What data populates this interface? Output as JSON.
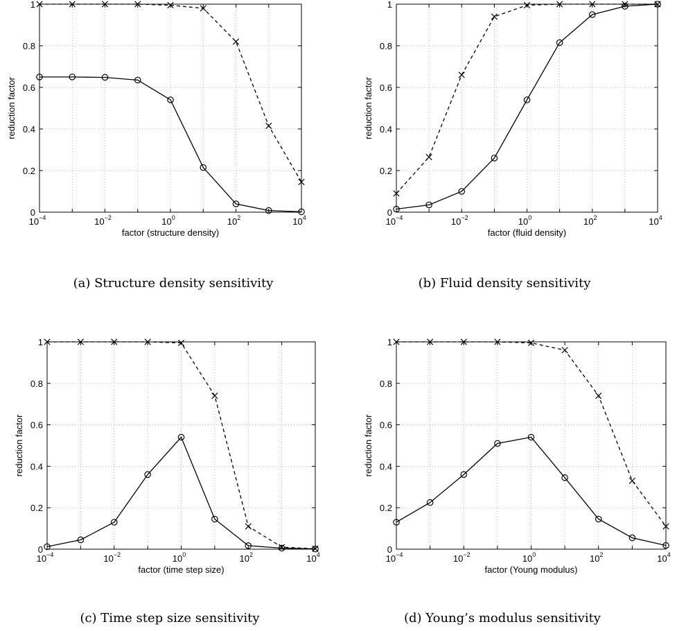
{
  "chart_data": [
    {
      "type": "line",
      "caption": "(a) Structure density sensitivity",
      "xlabel": "factor (structure density)",
      "ylabel": "reduction factor",
      "xscale": "log",
      "xlim": [
        0.0001,
        10000
      ],
      "ylim": [
        0,
        1
      ],
      "xticks": [
        0.0001,
        0.01,
        1,
        100,
        10000
      ],
      "xtick_labels": [
        {
          "base": "10",
          "exp": "−4"
        },
        {
          "base": "10",
          "exp": "−2"
        },
        {
          "base": "10",
          "exp": "0"
        },
        {
          "base": "10",
          "exp": "2"
        },
        {
          "base": "10",
          "exp": "4"
        }
      ],
      "yticks": [
        0,
        0.2,
        0.4,
        0.6,
        0.8,
        1
      ],
      "ytick_labels": [
        "0",
        "0.2",
        "0.4",
        "0.6",
        "0.8",
        "1"
      ],
      "grid": true,
      "x": [
        0.0001,
        0.001,
        0.01,
        0.1,
        1,
        10,
        100,
        1000,
        10000
      ],
      "series": [
        {
          "style": "solid",
          "marker": "circle",
          "values": [
            0.65,
            0.65,
            0.648,
            0.635,
            0.54,
            0.215,
            0.04,
            0.008,
            0.002
          ]
        },
        {
          "style": "dashed",
          "marker": "cross",
          "values": [
            1.0,
            1.0,
            1.0,
            1.0,
            0.995,
            0.98,
            0.82,
            0.415,
            0.145
          ]
        }
      ]
    },
    {
      "type": "line",
      "caption": "(b) Fluid density sensitivity",
      "xlabel": "factor (fluid density)",
      "ylabel": "reduction factor",
      "xscale": "log",
      "xlim": [
        0.0001,
        10000
      ],
      "ylim": [
        0,
        1
      ],
      "xticks": [
        0.0001,
        0.01,
        1,
        100,
        10000
      ],
      "xtick_labels": [
        {
          "base": "10",
          "exp": "−4"
        },
        {
          "base": "10",
          "exp": "−2"
        },
        {
          "base": "10",
          "exp": "0"
        },
        {
          "base": "10",
          "exp": "2"
        },
        {
          "base": "10",
          "exp": "4"
        }
      ],
      "yticks": [
        0,
        0.2,
        0.4,
        0.6,
        0.8,
        1
      ],
      "ytick_labels": [
        "0",
        "0.2",
        "0.4",
        "0.6",
        "0.8",
        "1"
      ],
      "grid": true,
      "x": [
        0.0001,
        0.001,
        0.01,
        0.1,
        1,
        10,
        100,
        1000,
        10000
      ],
      "series": [
        {
          "style": "solid",
          "marker": "circle",
          "values": [
            0.015,
            0.035,
            0.1,
            0.26,
            0.54,
            0.815,
            0.95,
            0.99,
            1.0
          ]
        },
        {
          "style": "dashed",
          "marker": "cross",
          "values": [
            0.09,
            0.265,
            0.66,
            0.94,
            0.995,
            1.0,
            1.0,
            1.0,
            1.0
          ]
        }
      ]
    },
    {
      "type": "line",
      "caption": "(c) Time step size sensitivity",
      "xlabel": "factor (time step size)",
      "ylabel": "reduction factor",
      "xscale": "log",
      "xlim": [
        0.0001,
        10000
      ],
      "ylim": [
        0,
        1
      ],
      "xticks": [
        0.0001,
        0.01,
        1,
        100,
        10000
      ],
      "xtick_labels": [
        {
          "base": "10",
          "exp": "−4"
        },
        {
          "base": "10",
          "exp": "−2"
        },
        {
          "base": "10",
          "exp": "0"
        },
        {
          "base": "10",
          "exp": "2"
        },
        {
          "base": "10",
          "exp": "4"
        }
      ],
      "yticks": [
        0,
        0.2,
        0.4,
        0.6,
        0.8,
        1
      ],
      "ytick_labels": [
        "0",
        "0.2",
        "0.4",
        "0.6",
        "0.8",
        "1"
      ],
      "grid": true,
      "x": [
        0.0001,
        0.001,
        0.01,
        0.1,
        1,
        10,
        100,
        1000,
        10000
      ],
      "series": [
        {
          "style": "solid",
          "marker": "circle",
          "values": [
            0.012,
            0.045,
            0.13,
            0.36,
            0.54,
            0.145,
            0.017,
            0.005,
            0.001
          ]
        },
        {
          "style": "dashed",
          "marker": "cross",
          "values": [
            1.0,
            1.0,
            1.0,
            1.0,
            0.995,
            0.74,
            0.11,
            0.01,
            0.002
          ]
        }
      ]
    },
    {
      "type": "line",
      "caption": "(d) Young’s modulus sensitivity",
      "xlabel": "factor (Young modulus)",
      "ylabel": "reduction factor",
      "xscale": "log",
      "xlim": [
        0.0001,
        10000
      ],
      "ylim": [
        0,
        1
      ],
      "xticks": [
        0.0001,
        0.01,
        1,
        100,
        10000
      ],
      "xtick_labels": [
        {
          "base": "10",
          "exp": "−4"
        },
        {
          "base": "10",
          "exp": "−2"
        },
        {
          "base": "10",
          "exp": "0"
        },
        {
          "base": "10",
          "exp": "2"
        },
        {
          "base": "10",
          "exp": "4"
        }
      ],
      "yticks": [
        0,
        0.2,
        0.4,
        0.6,
        0.8,
        1
      ],
      "ytick_labels": [
        "0",
        "0.2",
        "0.4",
        "0.6",
        "0.8",
        "1"
      ],
      "grid": true,
      "x": [
        0.0001,
        0.001,
        0.01,
        0.1,
        1,
        10,
        100,
        1000,
        10000
      ],
      "series": [
        {
          "style": "solid",
          "marker": "circle",
          "values": [
            0.13,
            0.225,
            0.36,
            0.51,
            0.54,
            0.345,
            0.145,
            0.055,
            0.018
          ]
        },
        {
          "style": "dashed",
          "marker": "cross",
          "values": [
            1.0,
            1.0,
            1.0,
            1.0,
            0.995,
            0.96,
            0.74,
            0.33,
            0.11
          ]
        }
      ]
    }
  ]
}
